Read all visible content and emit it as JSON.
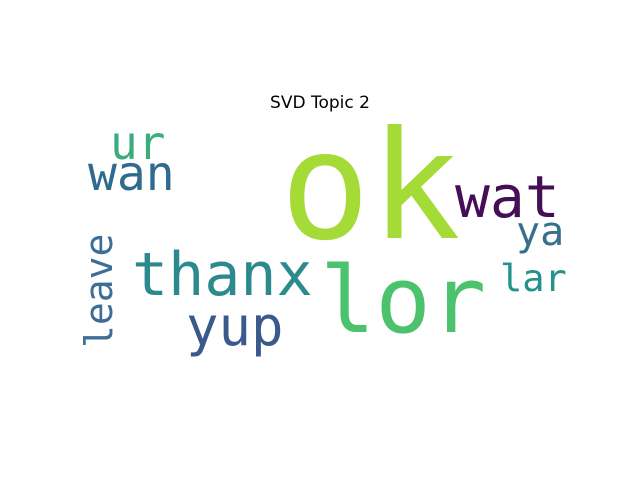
{
  "title": "SVD Topic 2",
  "words": [
    {
      "text": "ok",
      "color": "#a5db36"
    },
    {
      "text": "lor",
      "color": "#4cc26c"
    },
    {
      "text": "wat",
      "color": "#440f57"
    },
    {
      "text": "thanx",
      "color": "#2c8a8d"
    },
    {
      "text": "yup",
      "color": "#3b5a8c"
    },
    {
      "text": "wan",
      "color": "#306b8f"
    },
    {
      "text": "ur",
      "color": "#3aac7d"
    },
    {
      "text": "leave",
      "color": "#3e6e97"
    },
    {
      "text": "ya",
      "color": "#37708d"
    },
    {
      "text": "lar",
      "color": "#21928c"
    }
  ]
}
